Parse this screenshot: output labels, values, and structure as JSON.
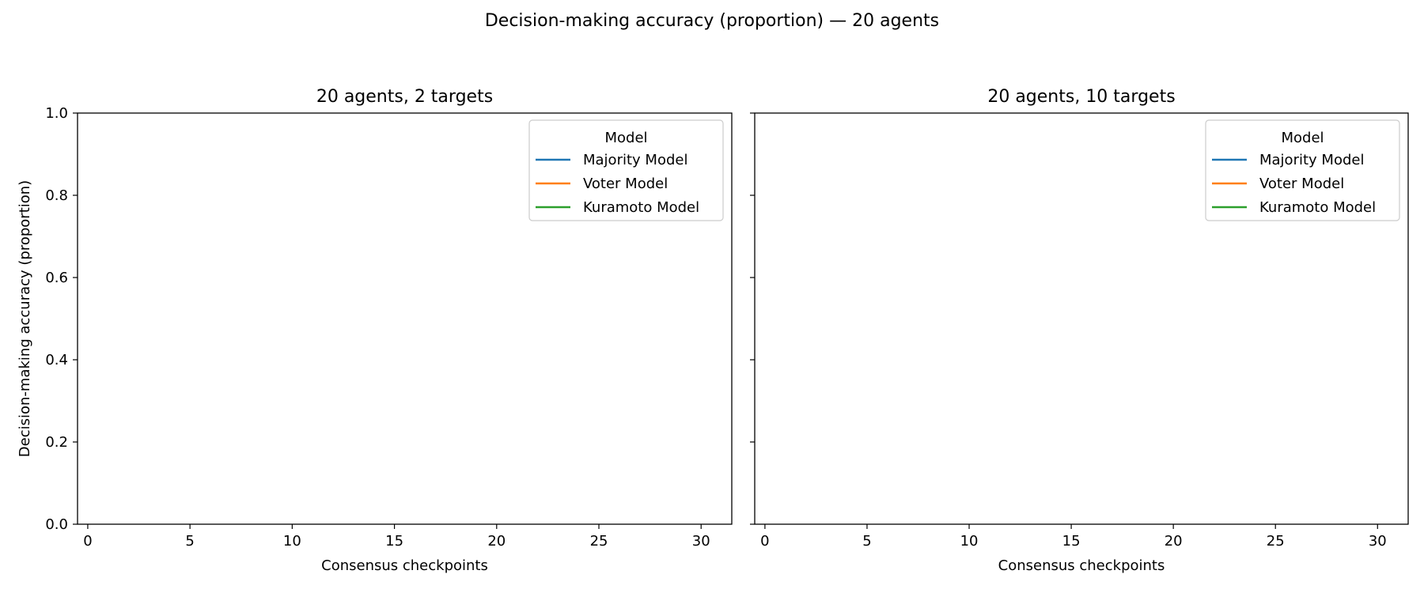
{
  "figure": {
    "suptitle": "Decision-making accuracy (proportion) — 20 agents"
  },
  "colors": {
    "Majority Model": "#1f77b4",
    "Voter Model": "#ff7f0e",
    "Kuramoto Model": "#2ca02c",
    "axes": "#000000",
    "background": "#ffffff"
  },
  "chart_data": [
    {
      "type": "line",
      "title": "20 agents, 2 targets",
      "xlabel": "Consensus checkpoints",
      "ylabel": "Decision-making accuracy (proportion)",
      "xlim": [
        -0.5,
        31.5
      ],
      "ylim": [
        0.0,
        1.0
      ],
      "xticks": [
        0,
        5,
        10,
        15,
        20,
        25,
        30
      ],
      "xtick_labels": [
        "0",
        "5",
        "10",
        "15",
        "20",
        "25",
        "30"
      ],
      "yticks": [
        0.0,
        0.2,
        0.4,
        0.6,
        0.8,
        1.0
      ],
      "ytick_labels": [
        "0.0",
        "0.2",
        "0.4",
        "0.6",
        "0.8",
        "1.0"
      ],
      "show_yticklabels": true,
      "grid": false,
      "legend": {
        "title": "Model",
        "position": "top-right"
      },
      "series": [
        {
          "name": "Majority Model",
          "x": [],
          "y": []
        },
        {
          "name": "Voter Model",
          "x": [],
          "y": []
        },
        {
          "name": "Kuramoto Model",
          "x": [],
          "y": []
        }
      ]
    },
    {
      "type": "line",
      "title": "20 agents, 10 targets",
      "xlabel": "Consensus checkpoints",
      "ylabel": "",
      "xlim": [
        -0.5,
        31.5
      ],
      "ylim": [
        0.0,
        1.0
      ],
      "xticks": [
        0,
        5,
        10,
        15,
        20,
        25,
        30
      ],
      "xtick_labels": [
        "0",
        "5",
        "10",
        "15",
        "20",
        "25",
        "30"
      ],
      "yticks": [
        0.0,
        0.2,
        0.4,
        0.6,
        0.8,
        1.0
      ],
      "ytick_labels": [
        "",
        "",
        "",
        "",
        "",
        ""
      ],
      "show_yticklabels": false,
      "grid": false,
      "legend": {
        "title": "Model",
        "position": "top-right"
      },
      "series": [
        {
          "name": "Majority Model",
          "x": [],
          "y": []
        },
        {
          "name": "Voter Model",
          "x": [],
          "y": []
        },
        {
          "name": "Kuramoto Model",
          "x": [],
          "y": []
        }
      ]
    }
  ]
}
